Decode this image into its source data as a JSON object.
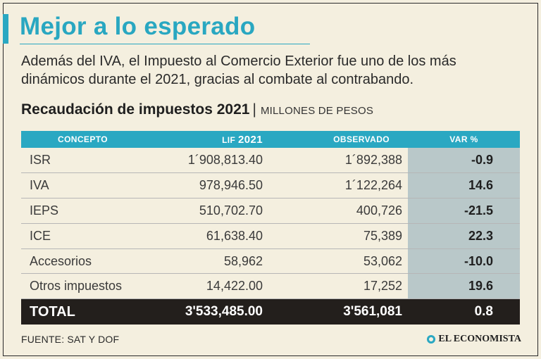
{
  "title": "Mejor a lo esperado",
  "subtitle": "Además del IVA, el Impuesto al Comercio Exterior fue uno de los más dinámicos durante el 2021, gracias al combate al contrabando.",
  "section": {
    "title": "Recaudación de impuestos 2021",
    "separator": "|",
    "units": "MILLONES DE PESOS"
  },
  "table": {
    "headers": {
      "concepto": "CONCEPTO",
      "lif_small": "LIF",
      "lif_big": "2021",
      "observado": "OBSERVADO",
      "var": "VAR %"
    },
    "rows": [
      {
        "concepto": "ISR",
        "lif": "1´908,813.40",
        "observado": "1´892,388",
        "var": "-0.9"
      },
      {
        "concepto": "IVA",
        "lif": "978,946.50",
        "observado": "1´122,264",
        "var": "14.6"
      },
      {
        "concepto": "IEPS",
        "lif": "510,702.70",
        "observado": "400,726",
        "var": "-21.5"
      },
      {
        "concepto": "ICE",
        "lif": "61,638.40",
        "observado": "75,389",
        "var": "22.3"
      },
      {
        "concepto": "Accesorios",
        "lif": "58,962",
        "observado": "53,062",
        "var": "-10.0"
      },
      {
        "concepto": "Otros impuestos",
        "lif": "14,422.00",
        "observado": "17,252",
        "var": "19.6"
      }
    ],
    "total": {
      "concepto": "TOTAL",
      "lif": "3'533,485.00",
      "observado": "3'561,081",
      "var": "0.8"
    }
  },
  "source": "FUENTE: SAT Y DOF",
  "brand": "EL ECONOMISTA",
  "colors": {
    "accent": "#2aa8c2",
    "background": "#f4efdf",
    "total_bg": "#231f1c",
    "var_col": "#b9c8c9"
  }
}
